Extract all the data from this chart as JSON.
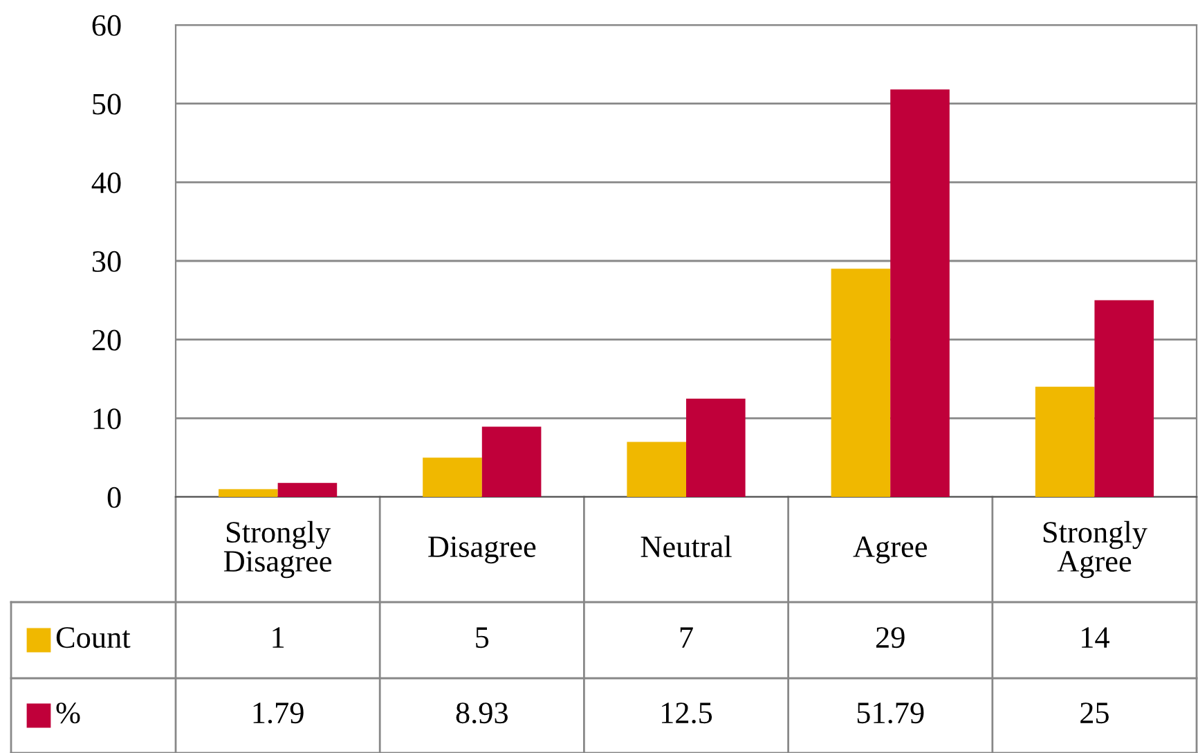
{
  "chart_data": {
    "type": "bar",
    "categories": [
      "Strongly\nDisagree",
      "Disagree",
      "Neutral",
      "Agree",
      "Strongly\nAgree"
    ],
    "series": [
      {
        "name": "Count",
        "color": "#f0b800",
        "values": [
          1,
          5,
          7,
          29,
          14
        ]
      },
      {
        "name": "%",
        "color": "#c0003a",
        "values": [
          1.79,
          8.93,
          12.5,
          51.79,
          25
        ]
      }
    ],
    "ylim": [
      0,
      60
    ],
    "yticks": [
      0,
      10,
      20,
      30,
      40,
      50,
      60
    ],
    "grid": "y",
    "legend": "bottom",
    "data_labels": true
  }
}
